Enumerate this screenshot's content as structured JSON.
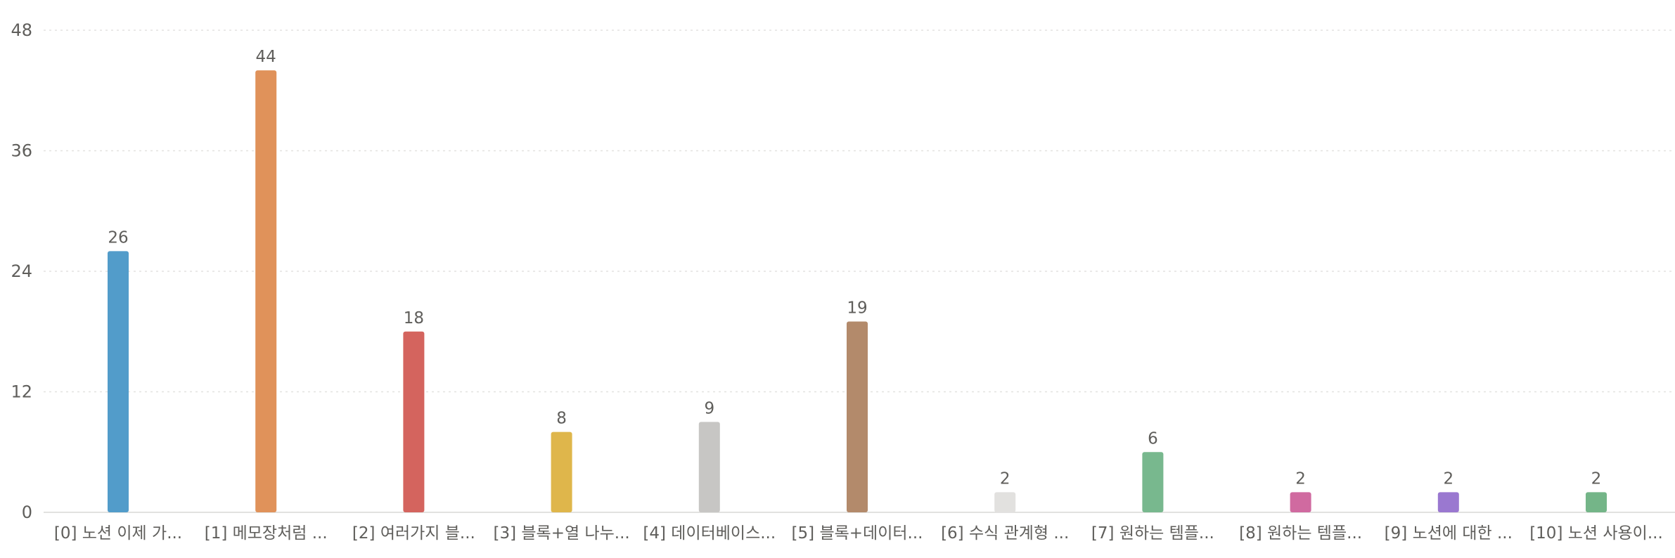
{
  "chart_data": {
    "type": "bar",
    "title": "",
    "xlabel": "",
    "ylabel": "",
    "ylim": [
      0,
      48
    ],
    "yticks": [
      0,
      12,
      24,
      36,
      48
    ],
    "grid": true,
    "legend": "none",
    "categories": [
      "[0] 노션 이제 가...",
      "[1] 메모장처럼 ...",
      "[2] 여러가지 블...",
      "[3] 블록+열 나누...",
      "[4] 데이터베이스...",
      "[5] 블록+데이터...",
      "[6] 수식 관계형 ...",
      "[7] 원하는 템플...",
      "[8] 원하는 템플...",
      "[9] 노션에 대한 ...",
      "[10] 노션 사용이..."
    ],
    "values": [
      26,
      44,
      18,
      8,
      9,
      19,
      2,
      6,
      2,
      2,
      2
    ],
    "colors": [
      "#529cca",
      "#e0925a",
      "#d4645e",
      "#dfb64b",
      "#c7c6c4",
      "#b38a6b",
      "#e2e1df",
      "#78b88e",
      "#d06aa0",
      "#9a78d0",
      "#74b588"
    ]
  }
}
